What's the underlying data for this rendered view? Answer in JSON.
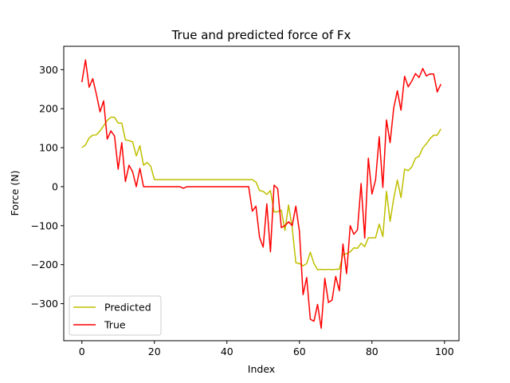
{
  "chart_data": {
    "type": "line",
    "title": "True and predicted force of Fx",
    "xlabel": "Index",
    "ylabel": "Force (N)",
    "xlim": [
      -5,
      104
    ],
    "ylim": [
      -395,
      360
    ],
    "xticks": [
      0,
      20,
      40,
      60,
      80,
      100
    ],
    "yticks": [
      -300,
      -200,
      -100,
      0,
      100,
      200,
      300
    ],
    "grid": false,
    "legend_position": "lower-left",
    "x": [
      0,
      1,
      2,
      3,
      4,
      5,
      6,
      7,
      8,
      9,
      10,
      11,
      12,
      13,
      14,
      15,
      16,
      17,
      18,
      19,
      20,
      21,
      22,
      23,
      24,
      25,
      26,
      27,
      28,
      29,
      30,
      31,
      32,
      33,
      34,
      35,
      36,
      37,
      38,
      39,
      40,
      41,
      42,
      43,
      44,
      45,
      46,
      47,
      48,
      49,
      50,
      51,
      52,
      53,
      54,
      55,
      56,
      57,
      58,
      59,
      60,
      61,
      62,
      63,
      64,
      65,
      66,
      67,
      68,
      69,
      70,
      71,
      72,
      73,
      74,
      75,
      76,
      77,
      78,
      79,
      80,
      81,
      82,
      83,
      84,
      85,
      86,
      87,
      88,
      89,
      90,
      91,
      92,
      93,
      94,
      95,
      96,
      97,
      98,
      99
    ],
    "series": [
      {
        "name": "Predicted",
        "color": "#bfbf00",
        "values": [
          100,
          107,
          125,
          132,
          133,
          143,
          156,
          170,
          178,
          178,
          163,
          163,
          120,
          118,
          115,
          79,
          105,
          55,
          62,
          52,
          18,
          18,
          18,
          18,
          18,
          18,
          18,
          18,
          18,
          18,
          18,
          18,
          18,
          18,
          18,
          18,
          18,
          18,
          18,
          18,
          18,
          18,
          18,
          18,
          18,
          18,
          18,
          18,
          12,
          -10,
          -12,
          -20,
          -10,
          -65,
          -64,
          -60,
          -112,
          -47,
          -105,
          -195,
          -197,
          -203,
          -197,
          -168,
          -197,
          -213,
          -212,
          -213,
          -212,
          -213,
          -212,
          -212,
          -173,
          -172,
          -167,
          -157,
          -158,
          -145,
          -154,
          -131,
          -131,
          -131,
          -96,
          -128,
          -12,
          -89,
          -30,
          17,
          -28,
          45,
          41,
          51,
          73,
          78,
          99,
          110,
          123,
          132,
          132,
          148
        ]
      },
      {
        "name": "True",
        "color": "#ff0000",
        "values": [
          268,
          325,
          255,
          277,
          237,
          192,
          220,
          122,
          143,
          130,
          45,
          113,
          13,
          55,
          38,
          0,
          47,
          0,
          0,
          0,
          0,
          0,
          0,
          0,
          0,
          0,
          0,
          0,
          -4,
          0,
          0,
          0,
          0,
          0,
          0,
          0,
          0,
          0,
          0,
          0,
          0,
          0,
          0,
          0,
          0,
          0,
          0,
          -63,
          -50,
          -130,
          -155,
          -44,
          -167,
          4,
          -5,
          -105,
          -100,
          -90,
          -100,
          -50,
          -115,
          -277,
          -233,
          -340,
          -345,
          -302,
          -363,
          -235,
          -297,
          -291,
          -230,
          -267,
          -147,
          -223,
          -100,
          -122,
          -111,
          8,
          -132,
          73,
          -19,
          18,
          128,
          -2,
          171,
          113,
          202,
          246,
          196,
          283,
          256,
          271,
          290,
          280,
          303,
          284,
          289,
          289,
          243,
          263
        ]
      }
    ]
  }
}
